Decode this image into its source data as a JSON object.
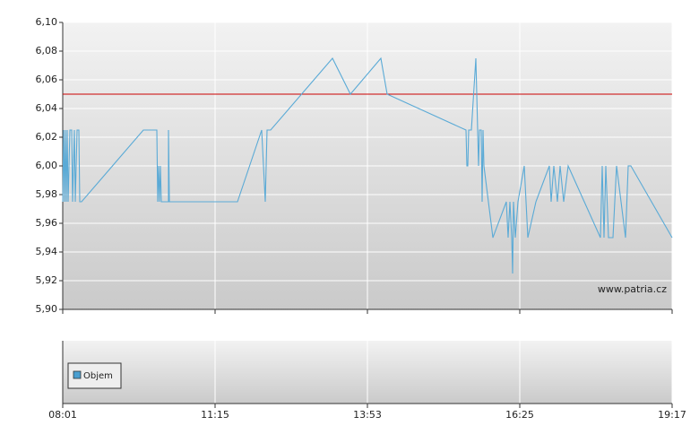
{
  "chart_data": {
    "type": "line",
    "x": [
      0,
      1,
      2,
      3,
      4,
      5,
      6,
      8,
      10,
      11,
      13,
      14,
      16,
      18,
      19,
      21,
      90,
      105,
      106,
      107,
      108,
      109,
      110,
      118,
      118,
      119,
      195,
      222,
      226,
      228,
      232,
      301,
      321,
      355,
      362,
      450,
      451,
      452,
      453,
      456,
      461,
      464,
      465,
      467,
      468,
      469,
      470,
      475,
      480,
      495,
      497,
      499,
      501,
      502,
      503,
      505,
      508,
      515,
      519,
      528,
      543,
      545,
      548,
      552,
      555,
      559,
      564,
      600,
      602,
      604,
      606,
      609,
      614,
      618,
      628,
      631,
      634,
      680
    ],
    "values": [
      5.975,
      6.025,
      5.975,
      6.025,
      5.975,
      6.025,
      5.975,
      6.025,
      6.025,
      5.975,
      6.025,
      5.975,
      6.025,
      6.025,
      5.975,
      5.975,
      6.025,
      6.025,
      5.975,
      6.0,
      5.975,
      6.0,
      5.975,
      5.975,
      6.025,
      5.975,
      5.975,
      6.025,
      5.975,
      6.025,
      6.025,
      6.075,
      6.05,
      6.075,
      6.05,
      6.025,
      6.0,
      6.0,
      6.025,
      6.025,
      6.075,
      6.0,
      6.025,
      6.025,
      5.975,
      6.025,
      6.0,
      5.975,
      5.95,
      5.975,
      5.95,
      5.975,
      5.95,
      5.925,
      5.975,
      5.95,
      5.975,
      6.0,
      5.95,
      5.975,
      6.0,
      5.975,
      6.0,
      5.975,
      6.0,
      5.975,
      6.0,
      5.95,
      6.0,
      5.95,
      6.0,
      5.95,
      5.95,
      6.0,
      5.95,
      6.0,
      6.0,
      5.95
    ],
    "color": "#5aaad6",
    "xlim": [
      0,
      680
    ],
    "xticks": [
      {
        "value": 0,
        "label": "08:01"
      },
      {
        "value": 170,
        "label": "11:15"
      },
      {
        "value": 340,
        "label": "13:53"
      },
      {
        "value": 510,
        "label": "16:25"
      },
      {
        "value": 680,
        "label": "19:17"
      }
    ],
    "ylim": [
      5.9,
      6.1
    ],
    "yticks": [
      {
        "value": 5.9,
        "label": "5,90"
      },
      {
        "value": 5.92,
        "label": "5,92"
      },
      {
        "value": 5.94,
        "label": "5,94"
      },
      {
        "value": 5.96,
        "label": "5,96"
      },
      {
        "value": 5.98,
        "label": "5,98"
      },
      {
        "value": 6.0,
        "label": "6,00"
      },
      {
        "value": 6.02,
        "label": "6,02"
      },
      {
        "value": 6.04,
        "label": "6,04"
      },
      {
        "value": 6.06,
        "label": "6,06"
      },
      {
        "value": 6.08,
        "label": "6,08"
      },
      {
        "value": 6.1,
        "label": "6,10"
      }
    ],
    "reference_line": {
      "value": 6.05,
      "color": "#cc0000"
    },
    "watermark": "www.patria.cz",
    "volume_panel": {
      "legend": "Objem",
      "color": "#4a9fd0"
    },
    "grid": true
  }
}
